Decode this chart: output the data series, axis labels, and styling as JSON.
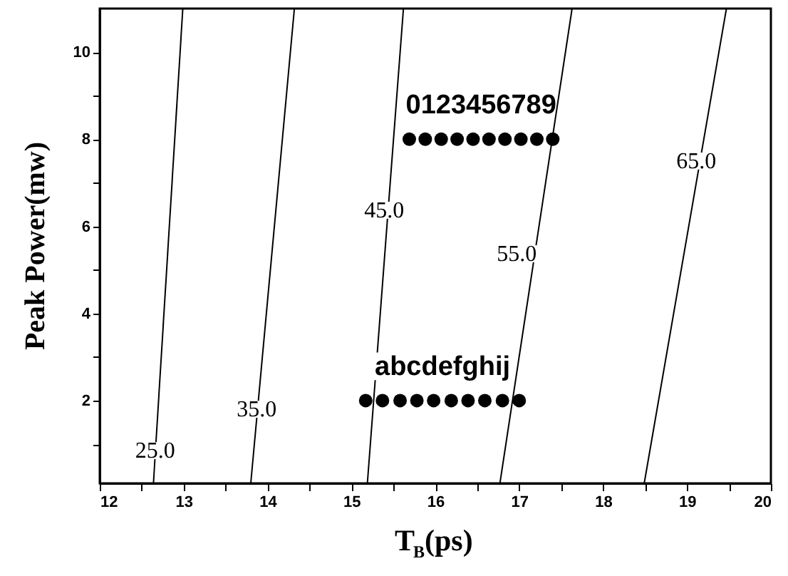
{
  "chart_data": {
    "type": "line",
    "xlabel": "T$_{B}$(ps)",
    "ylabel": "Peak Power(mw)",
    "xlim": [
      12,
      20
    ],
    "ylim": [
      0.1,
      11
    ],
    "xticks": [
      12,
      {
        "value": 12.5,
        "label": null
      },
      13,
      {
        "value": 13.5,
        "label": null
      },
      14,
      {
        "value": 14.5,
        "label": null
      },
      15,
      {
        "value": 15.5,
        "label": null
      },
      16,
      {
        "value": 16.5,
        "label": null
      },
      17,
      {
        "value": 17.5,
        "label": null
      },
      18,
      {
        "value": 18.5,
        "label": null
      },
      19,
      {
        "value": 19.5,
        "label": null
      },
      20
    ],
    "yticks": [
      {
        "value": 1,
        "label": null
      },
      2,
      {
        "value": 3,
        "label": null
      },
      4,
      {
        "value": 5,
        "label": null
      },
      6,
      {
        "value": 7,
        "label": null
      },
      8,
      {
        "value": 9,
        "label": null
      },
      10
    ],
    "grid": false,
    "line_style": "solid",
    "series": [
      {
        "color": "#000000",
        "x": [
          12.64,
          12.99
        ],
        "values": [
          0.1,
          11
        ]
      },
      {
        "color": "#000000",
        "x": [
          13.8,
          14.32
        ],
        "values": [
          0.1,
          11
        ]
      },
      {
        "color": "#000000",
        "x": [
          15.19,
          15.62
        ],
        "values": [
          0.1,
          11
        ]
      },
      {
        "color": "#000000",
        "x": [
          16.77,
          17.63
        ],
        "values": [
          0.1,
          11
        ]
      },
      {
        "color": "#000000",
        "x": [
          18.49,
          19.47
        ],
        "values": [
          0.1,
          11
        ]
      },
      {
        "type": "scatter",
        "marker": "circle",
        "color": "#000000",
        "x": [
          15.69,
          15.88,
          16.07,
          16.26,
          16.45,
          16.64,
          16.83,
          17.02,
          17.21,
          17.4
        ],
        "values": [
          8,
          8,
          8,
          8,
          8,
          8,
          8,
          8,
          8,
          8
        ]
      },
      {
        "type": "scatter",
        "marker": "circle",
        "color": "#000000",
        "x": [
          15.17,
          15.37,
          15.58,
          15.78,
          15.98,
          16.19,
          16.39,
          16.59,
          16.8,
          17.0
        ],
        "values": [
          2,
          2,
          2,
          2,
          2,
          2,
          2,
          2,
          2,
          2
        ]
      }
    ],
    "annotations": [
      "0123456789",
      "abcdefghij",
      {
        "text": "25.0",
        "x": 12.66,
        "y": 0.85
      },
      {
        "text": "35.0",
        "x": 13.87,
        "y": 1.8
      },
      {
        "text": "45.0",
        "x": 15.39,
        "y": 6.37
      },
      {
        "text": "55.0",
        "x": 16.97,
        "y": 5.37
      },
      {
        "text": "65.0",
        "x": 19.11,
        "y": 7.5
      }
    ]
  }
}
